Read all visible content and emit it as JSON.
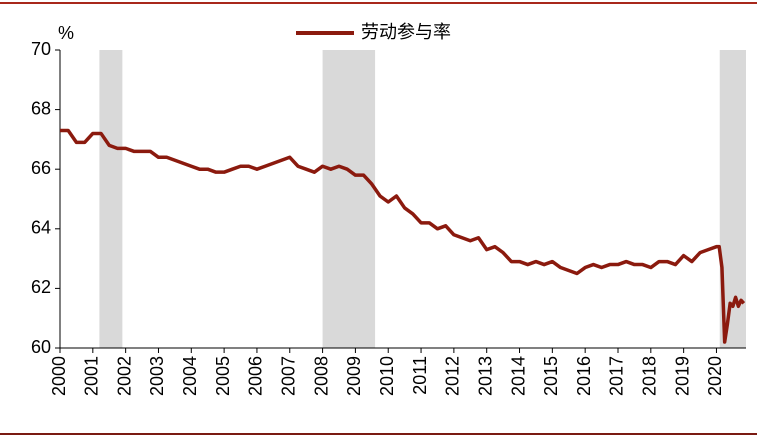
{
  "chart_data": {
    "type": "line",
    "y_label": "%",
    "series": [
      {
        "name": "劳动参与率",
        "color": "#8b1a0e",
        "x": [
          2000.0,
          2000.25,
          2000.5,
          2000.75,
          2001.0,
          2001.25,
          2001.5,
          2001.75,
          2002.0,
          2002.25,
          2002.5,
          2002.75,
          2003.0,
          2003.25,
          2003.5,
          2003.75,
          2004.0,
          2004.25,
          2004.5,
          2004.75,
          2005.0,
          2005.25,
          2005.5,
          2005.75,
          2006.0,
          2006.25,
          2006.5,
          2006.75,
          2007.0,
          2007.25,
          2007.5,
          2007.75,
          2008.0,
          2008.25,
          2008.5,
          2008.75,
          2009.0,
          2009.25,
          2009.5,
          2009.75,
          2010.0,
          2010.25,
          2010.5,
          2010.75,
          2011.0,
          2011.25,
          2011.5,
          2011.75,
          2012.0,
          2012.25,
          2012.5,
          2012.75,
          2013.0,
          2013.25,
          2013.5,
          2013.75,
          2014.0,
          2014.25,
          2014.5,
          2014.75,
          2015.0,
          2015.25,
          2015.5,
          2015.75,
          2016.0,
          2016.25,
          2016.5,
          2016.75,
          2017.0,
          2017.25,
          2017.5,
          2017.75,
          2018.0,
          2018.25,
          2018.5,
          2018.75,
          2019.0,
          2019.25,
          2019.5,
          2019.75,
          2020.0,
          2020.083,
          2020.167,
          2020.25,
          2020.333,
          2020.417,
          2020.5,
          2020.583,
          2020.667,
          2020.75,
          2020.833
        ],
        "values": [
          67.3,
          67.3,
          66.9,
          66.9,
          67.2,
          67.2,
          66.8,
          66.7,
          66.7,
          66.6,
          66.6,
          66.6,
          66.4,
          66.4,
          66.3,
          66.2,
          66.1,
          66.0,
          66.0,
          65.9,
          65.9,
          66.0,
          66.1,
          66.1,
          66.0,
          66.1,
          66.2,
          66.3,
          66.4,
          66.1,
          66.0,
          65.9,
          66.1,
          66.0,
          66.1,
          66.0,
          65.8,
          65.8,
          65.5,
          65.1,
          64.9,
          65.1,
          64.7,
          64.5,
          64.2,
          64.2,
          64.0,
          64.1,
          63.8,
          63.7,
          63.6,
          63.7,
          63.3,
          63.4,
          63.2,
          62.9,
          62.9,
          62.8,
          62.9,
          62.8,
          62.9,
          62.7,
          62.6,
          62.5,
          62.7,
          62.8,
          62.7,
          62.8,
          62.8,
          62.9,
          62.8,
          62.8,
          62.7,
          62.9,
          62.9,
          62.8,
          63.1,
          62.9,
          63.2,
          63.3,
          63.4,
          63.4,
          62.7,
          60.2,
          60.8,
          61.5,
          61.4,
          61.7,
          61.4,
          61.6,
          61.5
        ]
      }
    ],
    "shaded_periods": [
      [
        2001.2,
        2001.9
      ],
      [
        2008.0,
        2009.6
      ],
      [
        2020.1,
        2020.9
      ]
    ],
    "shade_color": "#d9d9d9",
    "xlim": [
      2000,
      2020.9
    ],
    "xticks": [
      2000,
      2001,
      2002,
      2003,
      2004,
      2005,
      2006,
      2007,
      2008,
      2009,
      2010,
      2011,
      2012,
      2013,
      2014,
      2015,
      2016,
      2017,
      2018,
      2019,
      2020
    ],
    "ylim": [
      60,
      70
    ],
    "yticks": [
      60,
      62,
      64,
      66,
      68,
      70
    ],
    "legend_position": "top"
  }
}
